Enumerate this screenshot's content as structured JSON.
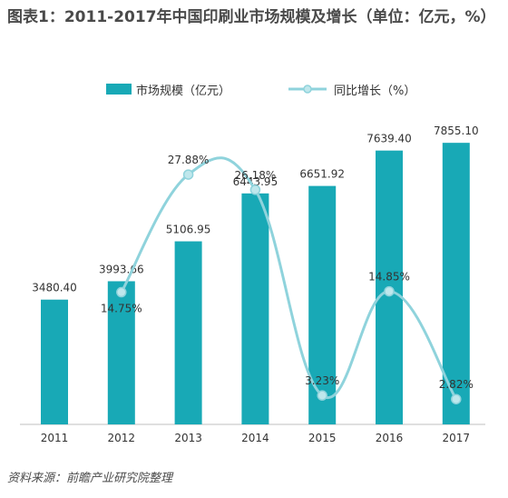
{
  "title": "图表1：2011-2017年中国印刷业市场规模及增长（单位：亿元，%）",
  "source": "资料来源：前瞻产业研究院整理",
  "colors": {
    "bar": "#18a9b6",
    "line": "#8fd3dc",
    "marker": "#bfe7ec"
  },
  "chart_data": {
    "type": "bar",
    "categories": [
      "2011",
      "2012",
      "2013",
      "2014",
      "2015",
      "2016",
      "2017"
    ],
    "series": [
      {
        "name": "市场规模（亿元）",
        "type": "bar",
        "values": [
          3480.4,
          3993.66,
          5106.95,
          6443.95,
          6651.92,
          7639.4,
          7855.1
        ],
        "labels": [
          "3480.40",
          "3993.66",
          "5106.95",
          "6443.95",
          "6651.92",
          "7639.40",
          "7855.10"
        ]
      },
      {
        "name": "同比增长（%）",
        "type": "line",
        "values": [
          null,
          14.75,
          27.88,
          26.18,
          3.23,
          14.85,
          2.82
        ],
        "labels": [
          "",
          "14.75%",
          "27.88%",
          "26.18%",
          "3.23%",
          "14.85%",
          "2.82%"
        ]
      }
    ],
    "ylim": [
      0,
      9000
    ],
    "y2lim": [
      0,
      36
    ],
    "grid": false,
    "legend_position": "top-center"
  }
}
